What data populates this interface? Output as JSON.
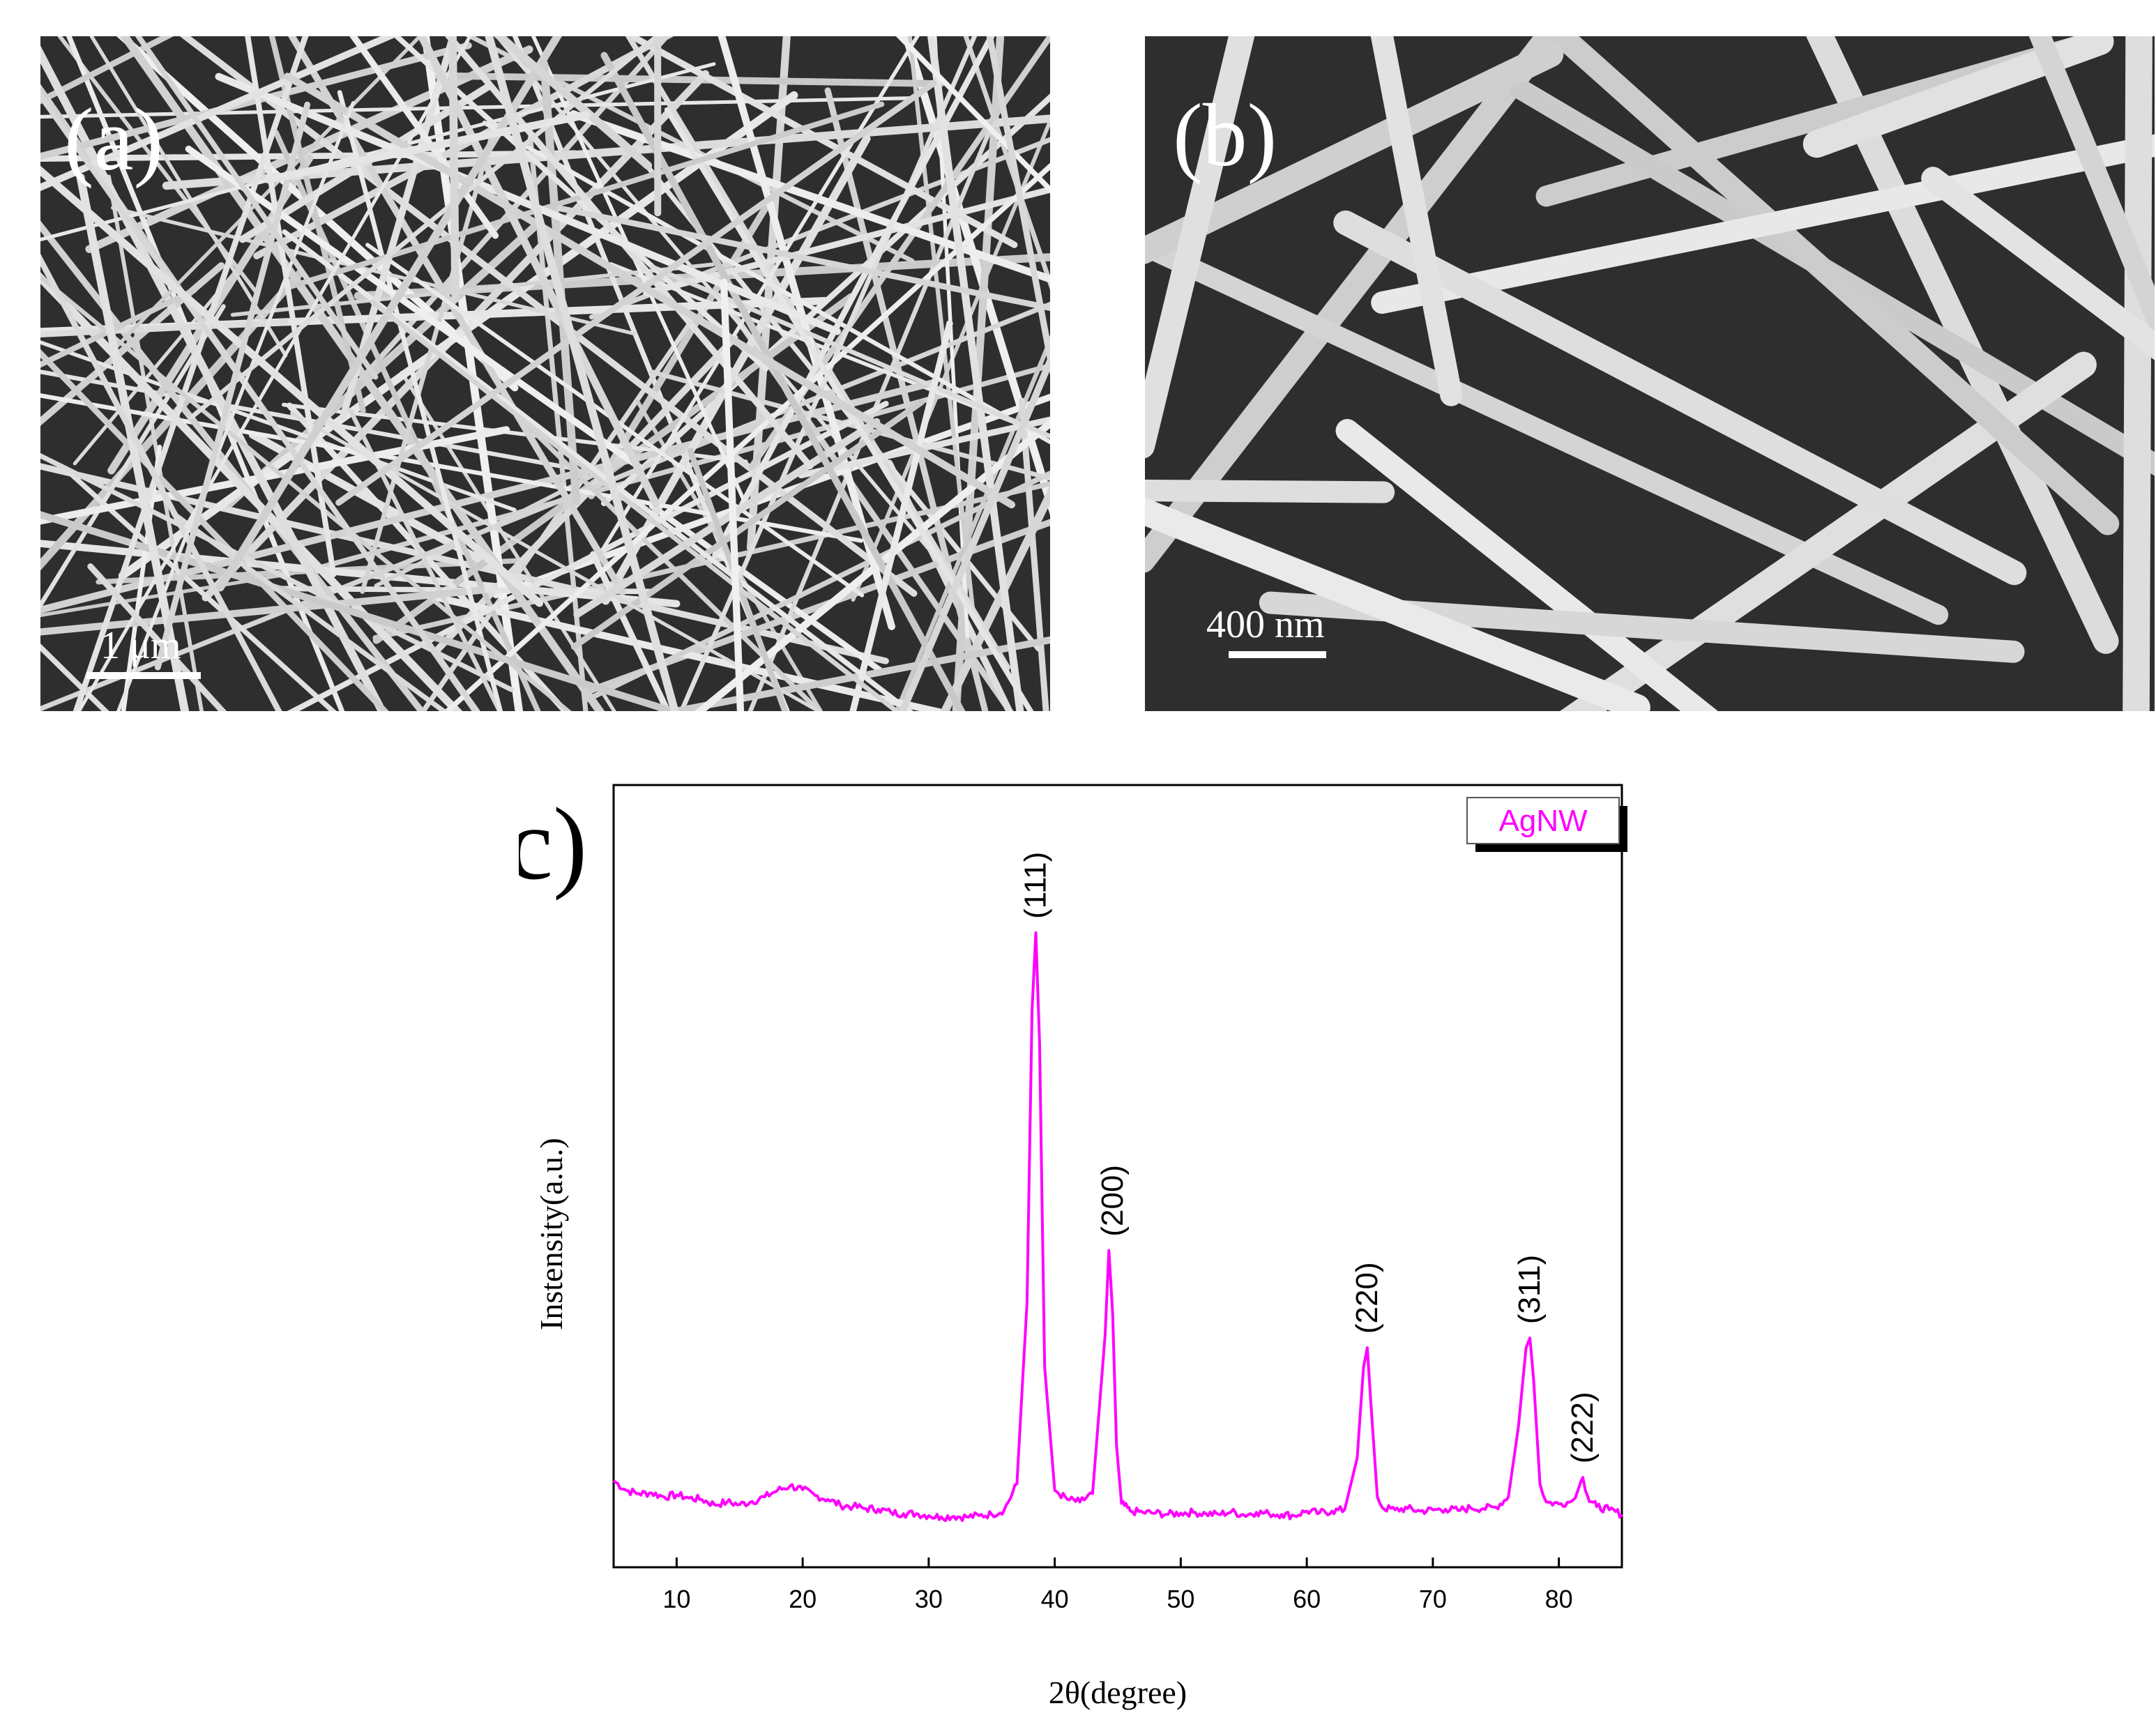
{
  "panels": {
    "a": {
      "label": "(a)",
      "scale_bar": "1 μm"
    },
    "b": {
      "label": "(b)",
      "scale_bar": "400 nm"
    },
    "c": {
      "label": "(c)"
    }
  },
  "colors": {
    "series": "#ff00ff",
    "sem_background": "#2e2e2e",
    "wire": "#e6e6e6"
  },
  "chart_data": {
    "type": "line",
    "title": "",
    "xlabel": "2θ(degree)",
    "ylabel": "Instensity(a.u.)",
    "xlim": [
      5,
      85
    ],
    "ylim": [
      0,
      100
    ],
    "xticks": [
      10,
      20,
      30,
      40,
      50,
      60,
      70,
      80
    ],
    "y_tick_labels_shown": false,
    "grid": false,
    "legend": {
      "position": "top-right",
      "entries": [
        "AgNW"
      ]
    },
    "series": [
      {
        "name": "AgNW",
        "color": "#ff00ff",
        "x": [
          5,
          6,
          7,
          8,
          9,
          10,
          11,
          12,
          13,
          14,
          15,
          16,
          17,
          18,
          19,
          20,
          21,
          22,
          23,
          24,
          25,
          26,
          27,
          28,
          29,
          30,
          31,
          32,
          33,
          34,
          35,
          36,
          37,
          37.8,
          38.2,
          38.5,
          38.8,
          39.2,
          40,
          41,
          42,
          43,
          44,
          44.3,
          44.6,
          44.9,
          45.3,
          46,
          47,
          48,
          49,
          50,
          51,
          52,
          53,
          54,
          55,
          56,
          57,
          58,
          59,
          60,
          61,
          62,
          63,
          64,
          64.5,
          64.8,
          65.1,
          65.6,
          66,
          67,
          68,
          69,
          70,
          71,
          72,
          73,
          74,
          75,
          76,
          76.8,
          77.4,
          77.7,
          78,
          78.5,
          79,
          80,
          81,
          81.6,
          81.9,
          82.3,
          83,
          84,
          85
        ],
        "y": [
          12.5,
          11.0,
          10.5,
          10.6,
          10.0,
          10.3,
          9.8,
          9.6,
          8.8,
          9.2,
          8.8,
          9.3,
          10.0,
          11.0,
          11.7,
          11.1,
          10.2,
          9.6,
          8.7,
          8.5,
          8.2,
          8.1,
          7.6,
          7.4,
          7.4,
          7.1,
          6.9,
          7.0,
          6.9,
          7.1,
          7.3,
          8.0,
          12.0,
          40.0,
          85.0,
          97.0,
          80.0,
          30.0,
          11.0,
          9.6,
          9.2,
          10.5,
          35.0,
          48.0,
          38.0,
          18.0,
          9.0,
          7.8,
          7.6,
          7.5,
          7.3,
          7.5,
          7.6,
          7.4,
          7.3,
          7.7,
          7.2,
          7.6,
          7.4,
          7.3,
          7.1,
          7.8,
          7.5,
          7.8,
          8.0,
          16.0,
          30.0,
          33.0,
          24.0,
          10.0,
          8.3,
          8.0,
          8.2,
          7.8,
          8.0,
          8.1,
          7.9,
          8.3,
          8.2,
          8.4,
          10.0,
          21.0,
          33.0,
          34.5,
          28.0,
          12.0,
          9.2,
          8.9,
          9.3,
          11.5,
          13.0,
          10.0,
          8.5,
          8.0,
          7.3
        ]
      }
    ],
    "peak_labels": [
      {
        "text": "(111)",
        "x": 38.5,
        "y": 97.0
      },
      {
        "text": "(200)",
        "x": 44.6,
        "y": 48.0
      },
      {
        "text": "(220)",
        "x": 64.8,
        "y": 33.0
      },
      {
        "text": "(311)",
        "x": 77.7,
        "y": 34.5
      },
      {
        "text": "(222)",
        "x": 81.9,
        "y": 13.0
      }
    ]
  }
}
